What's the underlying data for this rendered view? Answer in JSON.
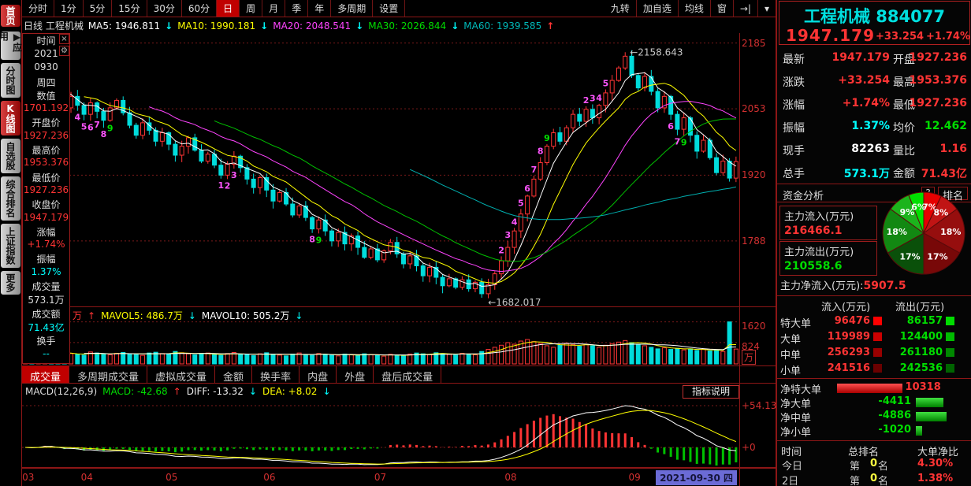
{
  "toolbar": {
    "periods": [
      "分时",
      "1分",
      "5分",
      "15分",
      "30分",
      "60分",
      "日",
      "周",
      "月",
      "季",
      "年",
      "多周期",
      "设置"
    ],
    "active": "日",
    "right_buttons": [
      "九转",
      "加自选",
      "均线",
      "窗",
      "→|",
      "▾"
    ]
  },
  "sidebar": {
    "items": [
      {
        "label": "首页",
        "name": "home",
        "active": true
      },
      {
        "label": "▶应用",
        "name": "apps",
        "active": false
      },
      {
        "label": "分时图",
        "name": "minute-chart",
        "active": false
      },
      {
        "label": "K线图",
        "name": "kline-chart",
        "active": true
      },
      {
        "label": "自选股",
        "name": "watchlist",
        "active": false
      },
      {
        "label": "综合排名",
        "name": "ranking",
        "active": false
      },
      {
        "label": "上证指数",
        "name": "sse-index",
        "active": false
      },
      {
        "label": "更多",
        "name": "more",
        "active": false
      }
    ]
  },
  "ma_bar": {
    "prefix": "日线 工程机械",
    "items": [
      {
        "t": "MA5: 1946.811",
        "c": "#ffffff",
        "arrow": "↓",
        "ac": "#00ffff"
      },
      {
        "t": "MA10: 1990.181",
        "c": "#ffff00",
        "arrow": "↓",
        "ac": "#00ffff"
      },
      {
        "t": "MA20: 2048.541",
        "c": "#ff44ff",
        "arrow": "↓",
        "ac": "#00ffff"
      },
      {
        "t": "MA30: 2026.844",
        "c": "#00dd00",
        "arrow": "↓",
        "ac": "#00ffff"
      },
      {
        "t": "MA60: 1939.585",
        "c": "#00b8b8",
        "arrow": "↑",
        "ac": "#ff3434"
      }
    ]
  },
  "info_panel": {
    "title": "时间",
    "lines": [
      {
        "t": "2021",
        "c": "#dddddd"
      },
      {
        "t": "0930",
        "c": "#dddddd"
      },
      {
        "t": "周四",
        "c": "#dddddd"
      },
      {
        "t": "数值",
        "c": "#dddddd"
      },
      {
        "t": "1701.192",
        "c": "#ff3434"
      },
      {
        "t": "开盘价",
        "c": "#dddddd"
      },
      {
        "t": "1927.236",
        "c": "#ff3434"
      },
      {
        "t": "最高价",
        "c": "#dddddd"
      },
      {
        "t": "1953.376",
        "c": "#ff3434"
      },
      {
        "t": "最低价",
        "c": "#dddddd"
      },
      {
        "t": "1927.236",
        "c": "#ff3434"
      },
      {
        "t": "收盘价",
        "c": "#dddddd"
      },
      {
        "t": "1947.179",
        "c": "#ff3434"
      },
      {
        "t": "涨幅",
        "c": "#dddddd"
      },
      {
        "t": "+1.74%",
        "c": "#ff3434"
      },
      {
        "t": "振幅",
        "c": "#dddddd"
      },
      {
        "t": "1.37%",
        "c": "#00ffff"
      },
      {
        "t": "成交量",
        "c": "#dddddd"
      },
      {
        "t": "573.1万",
        "c": "#dddddd"
      },
      {
        "t": "成交额",
        "c": "#dddddd"
      },
      {
        "t": "71.43亿",
        "c": "#00ffff"
      },
      {
        "t": "换手",
        "c": "#dddddd"
      },
      {
        "t": "--",
        "c": "#00ffff"
      }
    ]
  },
  "quote": {
    "name": "工程机械",
    "code": "884077",
    "last": "1947.179",
    "change": "+33.254",
    "change_pct": "+1.74%",
    "grid": [
      {
        "l1": "最新",
        "v1": "1947.179",
        "c1": "#ff3434",
        "l2": "开盘",
        "v2": "1927.236",
        "c2": "#ff3434"
      },
      {
        "l1": "涨跌",
        "v1": "+33.254",
        "c1": "#ff3434",
        "l2": "最高",
        "v2": "1953.376",
        "c2": "#ff3434"
      },
      {
        "l1": "涨幅",
        "v1": "+1.74%",
        "c1": "#ff3434",
        "l2": "最低",
        "v2": "1927.236",
        "c2": "#ff3434"
      },
      {
        "l1": "振幅",
        "v1": "1.37%",
        "c1": "#00ffff",
        "l2": "均价",
        "v2": "12.462",
        "c2": "#00dd00"
      },
      {
        "l1": "现手",
        "v1": "82263",
        "c1": "#ffffff",
        "l2": "量比",
        "v2": "1.16",
        "c2": "#ff3434"
      },
      {
        "l1": "总手",
        "v1": "573.1万",
        "c1": "#00ffff",
        "l2": "金额",
        "v2": "71.43亿",
        "c2": "#ff3434"
      }
    ]
  },
  "fund": {
    "section_title": "资金分析",
    "help": "?",
    "rank_btn": "排名",
    "inflow_label": "主力流入(万元)",
    "inflow": "216466.1",
    "outflow_label": "主力流出(万元)",
    "outflow": "210558.6",
    "net_label": "主力净流入(万元):",
    "net": "5907.5",
    "pie": {
      "values": [
        7,
        8,
        18,
        17,
        17,
        18,
        9,
        6
      ],
      "labels": [
        "7%",
        "8%",
        "18%",
        "17%",
        "17%",
        "18%",
        "9%",
        "6%"
      ],
      "colors": [
        "#e60000",
        "#c01414",
        "#960e0e",
        "#780808",
        "#0a500a",
        "#128812",
        "#1cb41c",
        "#00e000"
      ]
    },
    "table": {
      "headers": [
        "流入(万元)",
        "流出(万元)"
      ],
      "rows": [
        {
          "name": "特大单",
          "in": "96476",
          "in_chip": "#ff0000",
          "out": "86157",
          "out_chip": "#00dd00"
        },
        {
          "name": "大单",
          "in": "119989",
          "in_chip": "#cc0000",
          "out": "124400",
          "out_chip": "#00bb00"
        },
        {
          "name": "中单",
          "in": "256293",
          "in_chip": "#990000",
          "out": "261180",
          "out_chip": "#008800"
        },
        {
          "name": "小单",
          "in": "241516",
          "in_chip": "#6a0000",
          "out": "242536",
          "out_chip": "#006400"
        }
      ]
    },
    "net_rows": [
      {
        "name": "净特大单",
        "value": "10318",
        "num": 10318
      },
      {
        "name": "净大单",
        "value": "-4411",
        "num": -4411
      },
      {
        "name": "净中单",
        "value": "-4886",
        "num": -4886
      },
      {
        "name": "净小单",
        "value": "-1020",
        "num": -1020
      }
    ],
    "rank_table": {
      "headers": [
        "时间",
        "总排名",
        "大单净比"
      ],
      "rows": [
        {
          "time": "今日",
          "rank_pre": "第",
          "rank_num": "0",
          "rank_suf": "名",
          "ratio": "4.30%"
        },
        {
          "time": "2日",
          "rank_pre": "第",
          "rank_num": "0",
          "rank_suf": "名",
          "ratio": "1.38%"
        }
      ]
    }
  },
  "volume_pane": {
    "header_items": [
      {
        "t": "万",
        "c": "#ff3434"
      },
      {
        "t": "↑",
        "c": "#ff3434"
      },
      {
        "t": "MAVOL5: 486.7万",
        "c": "#ffff00"
      },
      {
        "t": "↓",
        "c": "#00ffff"
      },
      {
        "t": "MAVOL10: 505.2万",
        "c": "#ffffff"
      },
      {
        "t": "↓",
        "c": "#00ffff"
      }
    ],
    "axis": [
      "1620",
      "824"
    ],
    "unit": "万"
  },
  "macd_pane": {
    "header_items": [
      {
        "t": "MACD(12,26,9)",
        "c": "#dddddd"
      },
      {
        "t": "MACD: -42.68",
        "c": "#00dd00"
      },
      {
        "t": "↑",
        "c": "#ff3434"
      },
      {
        "t": "DIFF: -13.32",
        "c": "#eeeeee"
      },
      {
        "t": "↓",
        "c": "#00ffff"
      },
      {
        "t": "DEA: +8.02",
        "c": "#ffff00"
      },
      {
        "t": "↓",
        "c": "#00ffff"
      }
    ],
    "axis_high": "+54.13",
    "axis_zero": "+0",
    "help_btn": "指标说明"
  },
  "bottom_tabs": [
    "成交量",
    "多周期成交量",
    "虚拟成交量",
    "金额",
    "换手率",
    "内盘",
    "外盘",
    "盘后成交量"
  ],
  "bottom_tabs_active": "成交量",
  "price_axis": [
    "2185",
    "2053",
    "1920",
    "1788"
  ],
  "annotations": {
    "peak": "←2158.643",
    "trough": "←1682.017"
  },
  "time_axis": {
    "months": [
      {
        "label": "03",
        "i": 0
      },
      {
        "label": "04",
        "i": 9
      },
      {
        "label": "05",
        "i": 22
      },
      {
        "label": "06",
        "i": 37
      },
      {
        "label": "07",
        "i": 54
      },
      {
        "label": "08",
        "i": 74
      },
      {
        "label": "09",
        "i": 93
      }
    ],
    "current": "2021-09-30",
    "current_day": "四"
  },
  "chart_data": {
    "type": "candlestick+volume+macd",
    "title": "工程机械 884077 日线",
    "price_gridlines": [
      2185,
      2053,
      1920,
      1788
    ],
    "price_range": [
      1655,
      2205
    ],
    "peak_value": 2158.643,
    "trough_value": 1682.017,
    "volume_gridlines": [
      1620,
      824
    ],
    "closes": [
      2088,
      2075,
      2098,
      2112,
      2095,
      2070,
      2055,
      2078,
      2060,
      2042,
      2065,
      2048,
      2030,
      2055,
      2070,
      2045,
      2020,
      2000,
      2025,
      2010,
      1988,
      2005,
      1982,
      1960,
      1978,
      1995,
      1970,
      1948,
      1962,
      1940,
      1920,
      1942,
      1958,
      1935,
      1912,
      1895,
      1915,
      1890,
      1868,
      1885,
      1862,
      1840,
      1858,
      1835,
      1812,
      1830,
      1808,
      1788,
      1805,
      1782,
      1798,
      1775,
      1755,
      1772,
      1750,
      1768,
      1785,
      1762,
      1742,
      1758,
      1738,
      1718,
      1735,
      1715,
      1698,
      1712,
      1695,
      1710,
      1692,
      1705,
      1682.017,
      1700,
      1722,
      1748,
      1775,
      1808,
      1842,
      1878,
      1912,
      1945,
      1978,
      2005,
      1988,
      2015,
      2042,
      2028,
      2052,
      2035,
      2060,
      2085,
      2110,
      2135,
      2158.643,
      2120,
      2095,
      2118,
      2088,
      2055,
      2078,
      2042,
      2012,
      2035,
      2000,
      1968,
      1990,
      1955,
      1925,
      1948,
      1914,
      1947.179
    ],
    "volumes": [
      420,
      380,
      460,
      510,
      390,
      350,
      430,
      400,
      370,
      340,
      460,
      420,
      380,
      350,
      410,
      440,
      390,
      360,
      330,
      420,
      450,
      400,
      370,
      480,
      430,
      390,
      350,
      380,
      420,
      360,
      330,
      400,
      440,
      380,
      350,
      320,
      390,
      430,
      370,
      340,
      310,
      380,
      420,
      360,
      330,
      400,
      370,
      340,
      310,
      380,
      350,
      320,
      390,
      360,
      330,
      300,
      370,
      340,
      310,
      380,
      420,
      390,
      360,
      430,
      400,
      370,
      340,
      410,
      380,
      350,
      480,
      560,
      640,
      720,
      820,
      760,
      880,
      940,
      860,
      780,
      700,
      640,
      720,
      800,
      740,
      680,
      760,
      700,
      640,
      720,
      780,
      840,
      900,
      820,
      760,
      700,
      640,
      580,
      620,
      560,
      600,
      540,
      580,
      520,
      560,
      500,
      540,
      480,
      1620,
      573
    ],
    "td_marks": [
      {
        "i": 8,
        "t": "4",
        "p": "b"
      },
      {
        "i": 9,
        "t": "5",
        "p": "b"
      },
      {
        "i": 10,
        "t": "6",
        "p": "b"
      },
      {
        "i": 11,
        "t": "7",
        "p": "b"
      },
      {
        "i": 12,
        "t": "8",
        "p": "b"
      },
      {
        "i": 13,
        "t": "9",
        "p": "b",
        "g": 1
      },
      {
        "i": 30,
        "t": "1",
        "p": "b"
      },
      {
        "i": 31,
        "t": "2",
        "p": "b"
      },
      {
        "i": 32,
        "t": "3",
        "p": "b"
      },
      {
        "i": 44,
        "t": "8",
        "p": "b"
      },
      {
        "i": 45,
        "t": "9",
        "p": "b",
        "g": 1
      },
      {
        "i": 73,
        "t": "2",
        "p": "a"
      },
      {
        "i": 74,
        "t": "3",
        "p": "a"
      },
      {
        "i": 75,
        "t": "4",
        "p": "a"
      },
      {
        "i": 76,
        "t": "5",
        "p": "a"
      },
      {
        "i": 77,
        "t": "6",
        "p": "a"
      },
      {
        "i": 78,
        "t": "7",
        "p": "a"
      },
      {
        "i": 79,
        "t": "8",
        "p": "a"
      },
      {
        "i": 80,
        "t": "9",
        "p": "a",
        "g": 1
      },
      {
        "i": 86,
        "t": "2",
        "p": "a"
      },
      {
        "i": 87,
        "t": "3",
        "p": "a"
      },
      {
        "i": 88,
        "t": "4",
        "p": "a"
      },
      {
        "i": 89,
        "t": "5",
        "p": "a"
      },
      {
        "i": 99,
        "t": "6",
        "p": "b"
      },
      {
        "i": 100,
        "t": "7",
        "p": "b"
      },
      {
        "i": 101,
        "t": "9",
        "p": "b",
        "g": 1
      }
    ]
  }
}
